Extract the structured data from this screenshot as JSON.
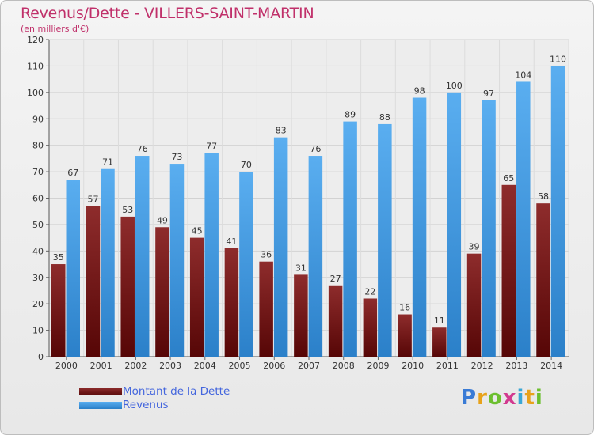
{
  "header": {
    "title": "Revenus/Dette - VILLERS-SAINT-MARTIN",
    "subtitle": "(en milliers d'€)"
  },
  "legend": {
    "debt_label": "Montant de la Dette",
    "revenue_label": "Revenus"
  },
  "logo": {
    "text": "Proxiti",
    "letters": [
      "P",
      "r",
      "o",
      "x",
      "i",
      "t",
      "i"
    ]
  },
  "colors": {
    "title": "#c0306a",
    "debt": "#7a1a1a",
    "revenue": "#3d97e0",
    "legend_text": "#4466dd"
  },
  "chart_data": {
    "type": "bar",
    "title": "Revenus/Dette - VILLERS-SAINT-MARTIN",
    "subtitle": "(en milliers d'€)",
    "xlabel": "",
    "ylabel": "",
    "ylim": [
      0,
      120
    ],
    "yticks": [
      0,
      10,
      20,
      30,
      40,
      50,
      60,
      70,
      80,
      90,
      100,
      110,
      120
    ],
    "grid": true,
    "legend_position": "bottom-left",
    "categories": [
      "2000",
      "2001",
      "2002",
      "2003",
      "2004",
      "2005",
      "2006",
      "2007",
      "2008",
      "2009",
      "2010",
      "2011",
      "2012",
      "2013",
      "2014"
    ],
    "series": [
      {
        "name": "Montant de la Dette",
        "values": [
          35,
          57,
          53,
          49,
          45,
          41,
          36,
          31,
          27,
          22,
          16,
          11,
          39,
          65,
          58
        ]
      },
      {
        "name": "Revenus",
        "values": [
          67,
          71,
          76,
          73,
          77,
          70,
          83,
          76,
          89,
          88,
          98,
          100,
          97,
          104,
          110
        ]
      }
    ]
  }
}
